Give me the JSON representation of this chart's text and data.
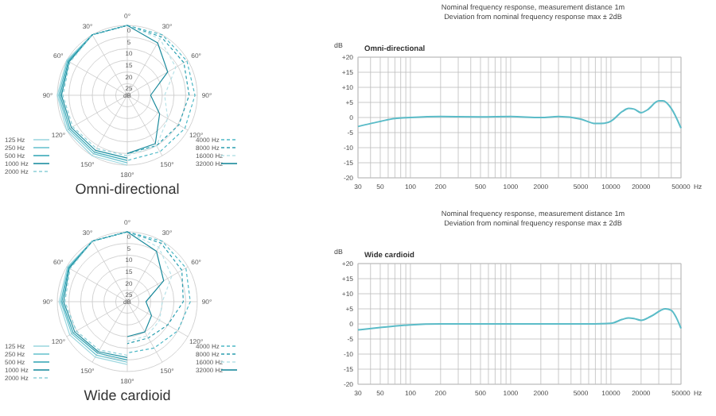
{
  "chart_data": [
    {
      "type": "radar",
      "title": "Omni-directional",
      "ylabel": "dB",
      "categories": [
        "0°",
        "30°",
        "60°",
        "90°",
        "120°",
        "150°",
        "180°",
        "150°",
        "120°",
        "90°",
        "60°",
        "30°"
      ],
      "ylim": [
        30,
        0
      ],
      "yticks": [
        0,
        5,
        10,
        15,
        20,
        25
      ],
      "legend": "bottom",
      "series": [
        {
          "name": "125 Hz",
          "color": "#9fd8e0",
          "values": [
            0,
            null,
            null,
            null,
            null,
            null,
            0,
            0,
            0,
            0,
            0,
            0
          ]
        },
        {
          "name": "250 Hz",
          "color": "#6cc4d0",
          "values": [
            0,
            null,
            null,
            null,
            null,
            null,
            1,
            1,
            0.8,
            0.6,
            0.4,
            0
          ]
        },
        {
          "name": "500 Hz",
          "color": "#3aa9b8",
          "values": [
            0,
            null,
            null,
            null,
            null,
            null,
            2,
            1.8,
            1.5,
            1.2,
            0.8,
            0
          ]
        },
        {
          "name": "1000 Hz",
          "color": "#1f8fa0",
          "values": [
            0,
            null,
            null,
            null,
            null,
            null,
            3,
            2.7,
            2.3,
            1.8,
            1.2,
            0
          ]
        },
        {
          "name": "2000 Hz",
          "color": "#8ccfd8",
          "line_style": "dashed",
          "values": [
            0,
            null,
            null,
            null,
            null,
            null,
            4,
            3.6,
            3,
            2.4,
            1.6,
            0
          ]
        },
        {
          "name": "4000 Hz",
          "color": "#4db8c6",
          "line_style": "dashed",
          "values": [
            0,
            0,
            0.5,
            1,
            1.5,
            2,
            2,
            null,
            null,
            null,
            null,
            null
          ]
        },
        {
          "name": "8000 Hz",
          "color": "#2b9fb0",
          "line_style": "dashed",
          "values": [
            0,
            1,
            2,
            3.5,
            4.5,
            5,
            5,
            null,
            null,
            null,
            null,
            null
          ]
        },
        {
          "name": "16000 Hz",
          "color": "#b7e2e8",
          "line_style": "dashed",
          "values": [
            0,
            2,
            6,
            14,
            10,
            5,
            4,
            null,
            null,
            null,
            null,
            null
          ]
        },
        {
          "name": "32000 Hz",
          "color": "#1a8a9c",
          "values": [
            0,
            4,
            10,
            20,
            14,
            6,
            5,
            null,
            null,
            null,
            null,
            null
          ]
        }
      ]
    },
    {
      "type": "line",
      "title": "Nominal frequency response, measurement distance 1m",
      "subtitle": "Deviation from nominal frequency response max ± 2dB",
      "ylabel": "dB",
      "xlabel": "Hz",
      "log": "x",
      "grid": true,
      "legend": "top left",
      "xlim": [
        30,
        50000
      ],
      "ylim": [
        -20,
        20
      ],
      "xticks": [
        30,
        {
          "value": 40,
          "label": null
        },
        50,
        {
          "value": 60,
          "label": null
        },
        {
          "value": 70,
          "label": null
        },
        {
          "value": 80,
          "label": null
        },
        {
          "value": 90,
          "label": null
        },
        100,
        200,
        {
          "value": 300,
          "label": null
        },
        {
          "value": 400,
          "label": null
        },
        500,
        {
          "value": 600,
          "label": null
        },
        {
          "value": 700,
          "label": null
        },
        {
          "value": 800,
          "label": null
        },
        {
          "value": 900,
          "label": null
        },
        1000,
        2000,
        {
          "value": 3000,
          "label": null
        },
        {
          "value": 4000,
          "label": null
        },
        5000,
        {
          "value": 6000,
          "label": null
        },
        {
          "value": 7000,
          "label": null
        },
        {
          "value": 8000,
          "label": null
        },
        {
          "value": 9000,
          "label": null
        },
        10000,
        20000,
        {
          "value": 30000,
          "label": null
        },
        {
          "value": 40000,
          "label": null
        },
        50000
      ],
      "yticks": [
        {
          "value": 20,
          "label": "+20"
        },
        {
          "value": 15,
          "label": "+15"
        },
        {
          "value": 10,
          "label": "+10"
        },
        {
          "value": 5,
          "label": "+5"
        },
        0,
        -5,
        -10,
        -15,
        -20
      ],
      "x": [
        30,
        40,
        50,
        70,
        100,
        200,
        500,
        1000,
        2000,
        3000,
        5000,
        7000,
        8000,
        10000,
        13000,
        15000,
        17000,
        20000,
        23000,
        30000,
        33000,
        40000,
        50000
      ],
      "series": [
        {
          "name": "Omni-directional",
          "color": "#5bbcc8",
          "values": [
            -3,
            -2,
            -1.3,
            -0.3,
            0,
            0.3,
            0.2,
            0.3,
            0,
            0.3,
            -0.5,
            -2,
            -2,
            -1.2,
            2,
            3,
            2.8,
            1.6,
            2.5,
            5.5,
            5.5,
            3,
            -3.5
          ]
        }
      ]
    },
    {
      "type": "radar",
      "title": "Wide cardioid",
      "ylabel": "dB",
      "categories": [
        "0°",
        "30°",
        "60°",
        "90°",
        "120°",
        "150°",
        "180°",
        "150°",
        "120°",
        "90°",
        "60°",
        "30°"
      ],
      "ylim": [
        30,
        0
      ],
      "yticks": [
        0,
        5,
        10,
        15,
        20,
        25
      ],
      "legend": "bottom",
      "series": [
        {
          "name": "125 Hz",
          "color": "#9fd8e0",
          "values": [
            0,
            null,
            null,
            null,
            null,
            null,
            3,
            2.5,
            1.5,
            0.8,
            0.3,
            0
          ]
        },
        {
          "name": "250 Hz",
          "color": "#6cc4d0",
          "values": [
            0,
            null,
            null,
            null,
            null,
            null,
            4,
            3.5,
            2.5,
            1.5,
            0.7,
            0
          ]
        },
        {
          "name": "500 Hz",
          "color": "#3aa9b8",
          "values": [
            0,
            null,
            null,
            null,
            null,
            null,
            5,
            4.5,
            3.2,
            2,
            1,
            0
          ]
        },
        {
          "name": "1000 Hz",
          "color": "#1f8fa0",
          "values": [
            0,
            null,
            null,
            null,
            null,
            null,
            6,
            5.2,
            4,
            2.7,
            1.3,
            0
          ]
        },
        {
          "name": "2000 Hz",
          "color": "#8ccfd8",
          "line_style": "dashed",
          "values": [
            0,
            null,
            null,
            null,
            null,
            null,
            7,
            6,
            4.8,
            3.3,
            1.7,
            0
          ]
        },
        {
          "name": "4000 Hz",
          "color": "#4db8c6",
          "line_style": "dashed",
          "values": [
            0,
            0,
            1,
            3,
            5,
            7,
            8,
            null,
            null,
            null,
            null,
            null
          ]
        },
        {
          "name": "8000 Hz",
          "color": "#2b9fb0",
          "line_style": "dashed",
          "values": [
            0,
            1,
            3,
            6,
            10,
            12,
            12,
            null,
            null,
            null,
            null,
            null
          ]
        },
        {
          "name": "16000 Hz",
          "color": "#b7e2e8",
          "line_style": "dashed",
          "values": [
            0,
            3,
            8,
            15,
            14,
            13,
            13,
            null,
            null,
            null,
            null,
            null
          ]
        },
        {
          "name": "32000 Hz",
          "color": "#1a8a9c",
          "values": [
            0,
            5,
            12,
            22,
            18,
            15,
            15,
            null,
            null,
            null,
            null,
            null
          ]
        }
      ]
    },
    {
      "type": "line",
      "title": "Nominal frequency response, measurement distance 1m",
      "subtitle": "Deviation from nominal frequency response max ± 2dB",
      "ylabel": "dB",
      "xlabel": "Hz",
      "log": "x",
      "grid": true,
      "legend": "top left",
      "xlim": [
        30,
        50000
      ],
      "ylim": [
        -20,
        20
      ],
      "xticks": [
        30,
        {
          "value": 40,
          "label": null
        },
        50,
        {
          "value": 60,
          "label": null
        },
        {
          "value": 70,
          "label": null
        },
        {
          "value": 80,
          "label": null
        },
        {
          "value": 90,
          "label": null
        },
        100,
        200,
        {
          "value": 300,
          "label": null
        },
        {
          "value": 400,
          "label": null
        },
        500,
        {
          "value": 600,
          "label": null
        },
        {
          "value": 700,
          "label": null
        },
        {
          "value": 800,
          "label": null
        },
        {
          "value": 900,
          "label": null
        },
        1000,
        2000,
        {
          "value": 3000,
          "label": null
        },
        {
          "value": 4000,
          "label": null
        },
        5000,
        {
          "value": 6000,
          "label": null
        },
        {
          "value": 7000,
          "label": null
        },
        {
          "value": 8000,
          "label": null
        },
        {
          "value": 9000,
          "label": null
        },
        10000,
        20000,
        {
          "value": 30000,
          "label": null
        },
        {
          "value": 40000,
          "label": null
        },
        50000
      ],
      "yticks": [
        {
          "value": 20,
          "label": "+20"
        },
        {
          "value": 15,
          "label": "+15"
        },
        {
          "value": 10,
          "label": "+10"
        },
        {
          "value": 5,
          "label": "+5"
        },
        0,
        -5,
        -10,
        -15,
        -20
      ],
      "x": [
        30,
        50,
        100,
        200,
        1000,
        5000,
        10000,
        13000,
        15000,
        17000,
        20000,
        25000,
        35000,
        40000,
        45000,
        50000
      ],
      "series": [
        {
          "name": "Wide cardioid",
          "color": "#5bbcc8",
          "values": [
            -2,
            -1.2,
            -0.3,
            0,
            0,
            0,
            0.2,
            1.5,
            2,
            1.8,
            1.2,
            2.5,
            5,
            4.5,
            2,
            -1.5
          ]
        }
      ]
    }
  ]
}
